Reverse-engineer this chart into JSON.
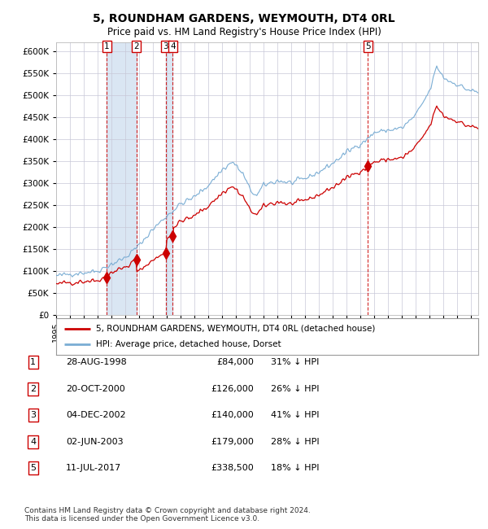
{
  "title": "5, ROUNDHAM GARDENS, WEYMOUTH, DT4 0RL",
  "subtitle": "Price paid vs. HM Land Registry's House Price Index (HPI)",
  "purchases": [
    {
      "label": "1",
      "date_num": 1998.66,
      "price": 84000,
      "pct": "31% ↓ HPI",
      "date_str": "28-AUG-1998"
    },
    {
      "label": "2",
      "date_num": 2000.8,
      "price": 126000,
      "pct": "26% ↓ HPI",
      "date_str": "20-OCT-2000"
    },
    {
      "label": "3",
      "date_num": 2002.92,
      "price": 140000,
      "pct": "41% ↓ HPI",
      "date_str": "04-DEC-2002"
    },
    {
      "label": "4",
      "date_num": 2003.42,
      "price": 179000,
      "pct": "28% ↓ HPI",
      "date_str": "02-JUN-2003"
    },
    {
      "label": "5",
      "date_num": 2017.53,
      "price": 338500,
      "pct": "18% ↓ HPI",
      "date_str": "11-JUL-2017"
    }
  ],
  "red_line_color": "#cc0000",
  "blue_line_color": "#7aadd4",
  "grid_color": "#c8c8d8",
  "bg_color": "#ffffff",
  "shading_color": "#dae6f3",
  "footer": "Contains HM Land Registry data © Crown copyright and database right 2024.\nThis data is licensed under the Open Government Licence v3.0.",
  "ylim": [
    0,
    620000
  ],
  "yticks": [
    0,
    50000,
    100000,
    150000,
    200000,
    250000,
    300000,
    350000,
    400000,
    450000,
    500000,
    550000,
    600000
  ],
  "legend_label_red": "5, ROUNDHAM GARDENS, WEYMOUTH, DT4 0RL (detached house)",
  "legend_label_blue": "HPI: Average price, detached house, Dorset",
  "xstart": 1995,
  "xend": 2025.5
}
